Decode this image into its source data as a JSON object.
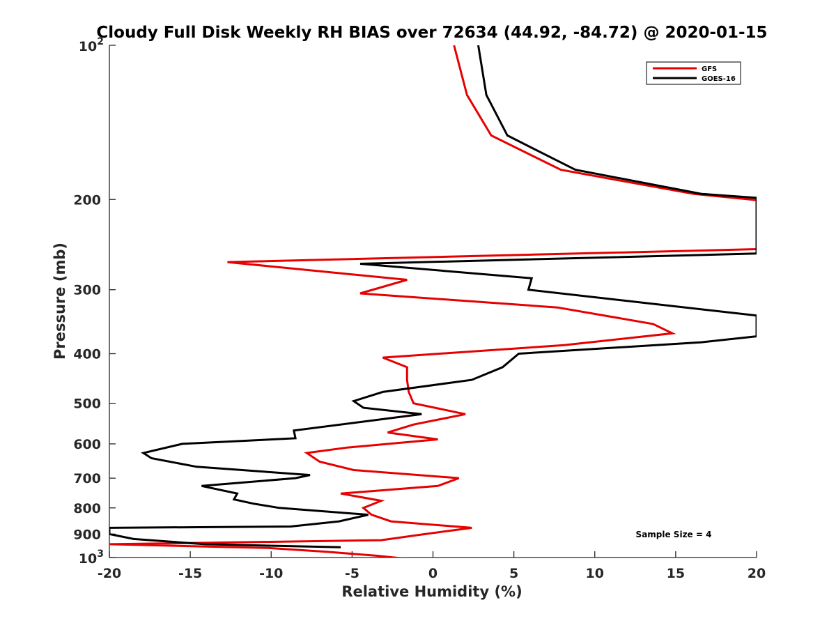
{
  "chart_data": {
    "type": "line",
    "title": "Cloudy Full Disk Weekly RH BIAS over 72634 (44.92, -84.72) @ 2020-01-15",
    "xlabel": "Relative Humidity (%)",
    "ylabel": "Pressure (mb)",
    "xlim": [
      -20,
      20
    ],
    "ylim": [
      100,
      1000
    ],
    "y_scale": "log",
    "y_reversed": true,
    "grid": false,
    "legend_position": "top-right",
    "x_ticks": [
      {
        "value": -20,
        "label": "-20"
      },
      {
        "value": -15,
        "label": "-15"
      },
      {
        "value": -10,
        "label": "-10"
      },
      {
        "value": -5,
        "label": "-5"
      },
      {
        "value": 0,
        "label": "0"
      },
      {
        "value": 5,
        "label": "5"
      },
      {
        "value": 10,
        "label": "10"
      },
      {
        "value": 15,
        "label": "15"
      },
      {
        "value": 20,
        "label": "20"
      }
    ],
    "y_ticks": [
      {
        "value": 100,
        "label": "10",
        "exponent": "2"
      },
      {
        "value": 200,
        "label": "200"
      },
      {
        "value": 300,
        "label": "300"
      },
      {
        "value": 400,
        "label": "400"
      },
      {
        "value": 500,
        "label": "500"
      },
      {
        "value": 600,
        "label": "600"
      },
      {
        "value": 700,
        "label": "700"
      },
      {
        "value": 800,
        "label": "800"
      },
      {
        "value": 900,
        "label": "900"
      },
      {
        "value": 1000,
        "label": "10",
        "exponent": "3"
      }
    ],
    "series": [
      {
        "name": "GFS",
        "color": "#e60000",
        "points": [
          {
            "x": 1.3,
            "y": 100
          },
          {
            "x": 2.1,
            "y": 125
          },
          {
            "x": 3.6,
            "y": 150
          },
          {
            "x": 7.9,
            "y": 175
          },
          {
            "x": 16.1,
            "y": 195
          },
          {
            "x": 20.0,
            "y": 200.5
          },
          {
            "x": 20.0,
            "y": 250
          },
          {
            "x": -12.7,
            "y": 265
          },
          {
            "x": -1.6,
            "y": 287
          },
          {
            "x": -4.5,
            "y": 305
          },
          {
            "x": 7.7,
            "y": 325
          },
          {
            "x": 13.6,
            "y": 350
          },
          {
            "x": 14.8,
            "y": 365
          },
          {
            "x": 8.1,
            "y": 385
          },
          {
            "x": -3.1,
            "y": 407
          },
          {
            "x": -1.6,
            "y": 425
          },
          {
            "x": -1.6,
            "y": 450
          },
          {
            "x": -1.5,
            "y": 475
          },
          {
            "x": -1.2,
            "y": 500
          },
          {
            "x": 2.0,
            "y": 525
          },
          {
            "x": -1.2,
            "y": 550
          },
          {
            "x": -2.8,
            "y": 570
          },
          {
            "x": 0.3,
            "y": 588
          },
          {
            "x": -5.3,
            "y": 610
          },
          {
            "x": -7.8,
            "y": 625
          },
          {
            "x": -7.0,
            "y": 650
          },
          {
            "x": -4.9,
            "y": 675
          },
          {
            "x": 1.6,
            "y": 700
          },
          {
            "x": 0.3,
            "y": 725
          },
          {
            "x": -5.7,
            "y": 750
          },
          {
            "x": -3.2,
            "y": 775
          },
          {
            "x": -4.3,
            "y": 800
          },
          {
            "x": -3.8,
            "y": 825
          },
          {
            "x": -2.6,
            "y": 850
          },
          {
            "x": 2.4,
            "y": 875
          },
          {
            "x": -0.5,
            "y": 900
          },
          {
            "x": -3.2,
            "y": 925
          },
          {
            "x": -20.0,
            "y": 942
          },
          {
            "x": -10.2,
            "y": 958
          },
          {
            "x": -6.5,
            "y": 975
          },
          {
            "x": -3.5,
            "y": 992
          },
          {
            "x": -1.6,
            "y": 1006
          }
        ]
      },
      {
        "name": "GOES-16",
        "color": "#000000",
        "points": [
          {
            "x": 2.8,
            "y": 100
          },
          {
            "x": 3.3,
            "y": 125
          },
          {
            "x": 4.6,
            "y": 150
          },
          {
            "x": 8.8,
            "y": 175
          },
          {
            "x": 16.6,
            "y": 195
          },
          {
            "x": 20.0,
            "y": 198.5
          },
          {
            "x": 20.0,
            "y": 255
          },
          {
            "x": -4.5,
            "y": 267
          },
          {
            "x": 6.1,
            "y": 285
          },
          {
            "x": 5.9,
            "y": 300
          },
          {
            "x": 20.0,
            "y": 337
          },
          {
            "x": 20.0,
            "y": 370
          },
          {
            "x": 16.6,
            "y": 380
          },
          {
            "x": 5.3,
            "y": 400
          },
          {
            "x": 4.3,
            "y": 425
          },
          {
            "x": 2.4,
            "y": 450
          },
          {
            "x": -3.1,
            "y": 475
          },
          {
            "x": -4.9,
            "y": 495
          },
          {
            "x": -4.3,
            "y": 510
          },
          {
            "x": -0.7,
            "y": 525
          },
          {
            "x": -8.6,
            "y": 565
          },
          {
            "x": -8.5,
            "y": 585
          },
          {
            "x": -15.5,
            "y": 600
          },
          {
            "x": -17.9,
            "y": 625
          },
          {
            "x": -17.4,
            "y": 640
          },
          {
            "x": -14.6,
            "y": 665
          },
          {
            "x": -7.6,
            "y": 690
          },
          {
            "x": -8.5,
            "y": 700
          },
          {
            "x": -14.3,
            "y": 725
          },
          {
            "x": -12.1,
            "y": 750
          },
          {
            "x": -12.3,
            "y": 770
          },
          {
            "x": -11.1,
            "y": 785
          },
          {
            "x": -9.5,
            "y": 800
          },
          {
            "x": -4.0,
            "y": 825
          },
          {
            "x": -5.8,
            "y": 850
          },
          {
            "x": -8.8,
            "y": 870
          },
          {
            "x": -20.0,
            "y": 875
          },
          {
            "x": -20.0,
            "y": 900
          },
          {
            "x": -18.5,
            "y": 920
          },
          {
            "x": -14.1,
            "y": 942
          },
          {
            "x": -5.7,
            "y": 955
          }
        ]
      }
    ],
    "annotations": [
      {
        "text": "Sample Size = 4"
      }
    ]
  }
}
